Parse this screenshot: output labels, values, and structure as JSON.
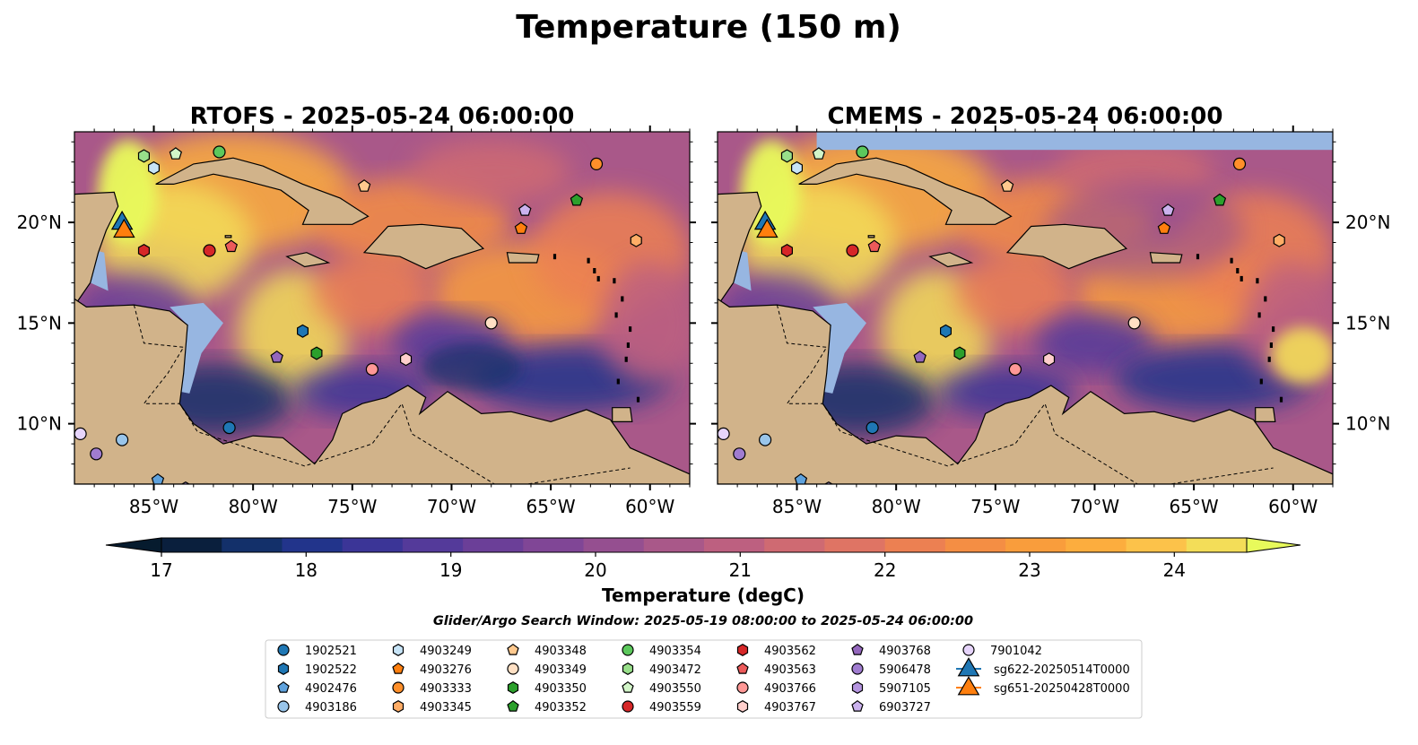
{
  "figure": {
    "title": "Temperature (150 m)",
    "panels": [
      {
        "title": "RTOFS - 2025-05-24 06:00:00"
      },
      {
        "title": "CMEMS - 2025-05-24 06:00:00"
      }
    ],
    "lon_ticks": [
      "85°W",
      "80°W",
      "75°W",
      "70°W",
      "65°W",
      "60°W"
    ],
    "lat_ticks": [
      "20°N",
      "15°N",
      "10°N"
    ],
    "colorbar": {
      "label": "Temperature (degC)",
      "ticks": [
        "17",
        "18",
        "19",
        "20",
        "21",
        "22",
        "23",
        "24"
      ],
      "range": [
        17,
        24.5
      ],
      "colors": [
        "#0a1f3d",
        "#13306a",
        "#22348b",
        "#3b3597",
        "#543a9a",
        "#6b3f98",
        "#804696",
        "#954f90",
        "#a95889",
        "#bd6080",
        "#cf6a72",
        "#df7464",
        "#ec8052",
        "#f48e44",
        "#f99d3c",
        "#fcad3e",
        "#fcc24a",
        "#f3dd58"
      ],
      "under_color": "#061b2e",
      "over_color": "#e8fa5b"
    },
    "subtitle": "Glider/Argo Search Window: 2025-05-19 08:00:00 to 2025-05-24 06:00:00",
    "map_extent": {
      "lon": [
        -89,
        -58
      ],
      "lat": [
        7,
        24.5
      ]
    },
    "colors": {
      "ocean_shallow": "#97b6e1",
      "land": "#d1b38a",
      "water_cold": "#0c2234"
    }
  },
  "legend": {
    "items": [
      {
        "label": "1902521",
        "color": "#1f77b4",
        "marker": "circle"
      },
      {
        "label": "1902522",
        "color": "#1f77b4",
        "marker": "hexagon"
      },
      {
        "label": "4902476",
        "color": "#5fa2dd",
        "marker": "pentagon"
      },
      {
        "label": "4903186",
        "color": "#99c5ea",
        "marker": "circle"
      },
      {
        "label": "4903249",
        "color": "#c7e4f7",
        "marker": "hexagon"
      },
      {
        "label": "4903276",
        "color": "#ff7f0e",
        "marker": "pentagon"
      },
      {
        "label": "4903333",
        "color": "#ff8f2a",
        "marker": "circle"
      },
      {
        "label": "4903345",
        "color": "#ffad66",
        "marker": "hexagon"
      },
      {
        "label": "4903348",
        "color": "#ffc98e",
        "marker": "pentagon"
      },
      {
        "label": "4903349",
        "color": "#ffe0c4",
        "marker": "circle"
      },
      {
        "label": "4903350",
        "color": "#2ca02c",
        "marker": "hexagon"
      },
      {
        "label": "4903352",
        "color": "#2ca02c",
        "marker": "pentagon"
      },
      {
        "label": "4903354",
        "color": "#5cc85c",
        "marker": "circle"
      },
      {
        "label": "4903472",
        "color": "#98df8a",
        "marker": "hexagon"
      },
      {
        "label": "4903550",
        "color": "#d2f5c8",
        "marker": "pentagon"
      },
      {
        "label": "4903559",
        "color": "#d62728",
        "marker": "circle"
      },
      {
        "label": "4903562",
        "color": "#d62728",
        "marker": "hexagon"
      },
      {
        "label": "4903563",
        "color": "#ec5a5a",
        "marker": "pentagon"
      },
      {
        "label": "4903766",
        "color": "#ff9896",
        "marker": "circle"
      },
      {
        "label": "4903767",
        "color": "#ffcfcc",
        "marker": "hexagon"
      },
      {
        "label": "4903768",
        "color": "#9467bd",
        "marker": "pentagon"
      },
      {
        "label": "5906478",
        "color": "#a07cd0",
        "marker": "circle"
      },
      {
        "label": "5907105",
        "color": "#b595e0",
        "marker": "hexagon"
      },
      {
        "label": "6903727",
        "color": "#cbb2ee",
        "marker": "pentagon"
      },
      {
        "label": "7901042",
        "color": "#e6d4fb",
        "marker": "circle"
      },
      {
        "label": "sg622-20250514T0000",
        "color": "#1f77b4",
        "marker": "triangle"
      },
      {
        "label": "sg651-20250428T0000",
        "color": "#ff7f0e",
        "marker": "triangle"
      }
    ]
  },
  "floats": [
    {
      "label": "1902521",
      "lon": -81.2,
      "lat": 9.8
    },
    {
      "label": "1902522",
      "lon": -77.5,
      "lat": 14.6
    },
    {
      "label": "4902476",
      "lon": -84.8,
      "lat": 7.2
    },
    {
      "label": "4903186",
      "lon": -86.6,
      "lat": 9.2
    },
    {
      "label": "4903249",
      "lon": -85.0,
      "lat": 22.7
    },
    {
      "label": "4903276",
      "lon": -66.5,
      "lat": 19.7
    },
    {
      "label": "4903333",
      "lon": -62.7,
      "lat": 22.9
    },
    {
      "label": "4903345",
      "lon": -60.7,
      "lat": 19.1
    },
    {
      "label": "4903348",
      "lon": -74.4,
      "lat": 21.8
    },
    {
      "label": "4903349",
      "lon": -68.0,
      "lat": 15.0
    },
    {
      "label": "4903350",
      "lon": -76.8,
      "lat": 13.5
    },
    {
      "label": "4903352",
      "lon": -63.7,
      "lat": 21.1
    },
    {
      "label": "4903354",
      "lon": -81.7,
      "lat": 23.5
    },
    {
      "label": "4903472",
      "lon": -85.5,
      "lat": 23.3
    },
    {
      "label": "4903550",
      "lon": -83.9,
      "lat": 23.4
    },
    {
      "label": "4903559",
      "lon": -82.2,
      "lat": 18.6
    },
    {
      "label": "4903562",
      "lon": -85.5,
      "lat": 18.6
    },
    {
      "label": "4903563",
      "lon": -81.1,
      "lat": 18.8
    },
    {
      "label": "4903766",
      "lon": -74.0,
      "lat": 12.7
    },
    {
      "label": "4903767",
      "lon": -72.3,
      "lat": 13.2
    },
    {
      "label": "4903768",
      "lon": -78.8,
      "lat": 13.3
    },
    {
      "label": "5906478",
      "lon": -87.9,
      "lat": 8.5
    },
    {
      "label": "5907105",
      "lon": -83.4,
      "lat": 6.8
    },
    {
      "label": "6903727",
      "lon": -66.3,
      "lat": 20.6
    },
    {
      "label": "7901042",
      "lon": -88.7,
      "lat": 9.5
    }
  ],
  "gliders": [
    {
      "label": "sg622-20250514T0000",
      "lon": -86.6,
      "lat": 20.1
    },
    {
      "label": "sg651-20250428T0000",
      "lon": -86.5,
      "lat": 19.7
    }
  ]
}
